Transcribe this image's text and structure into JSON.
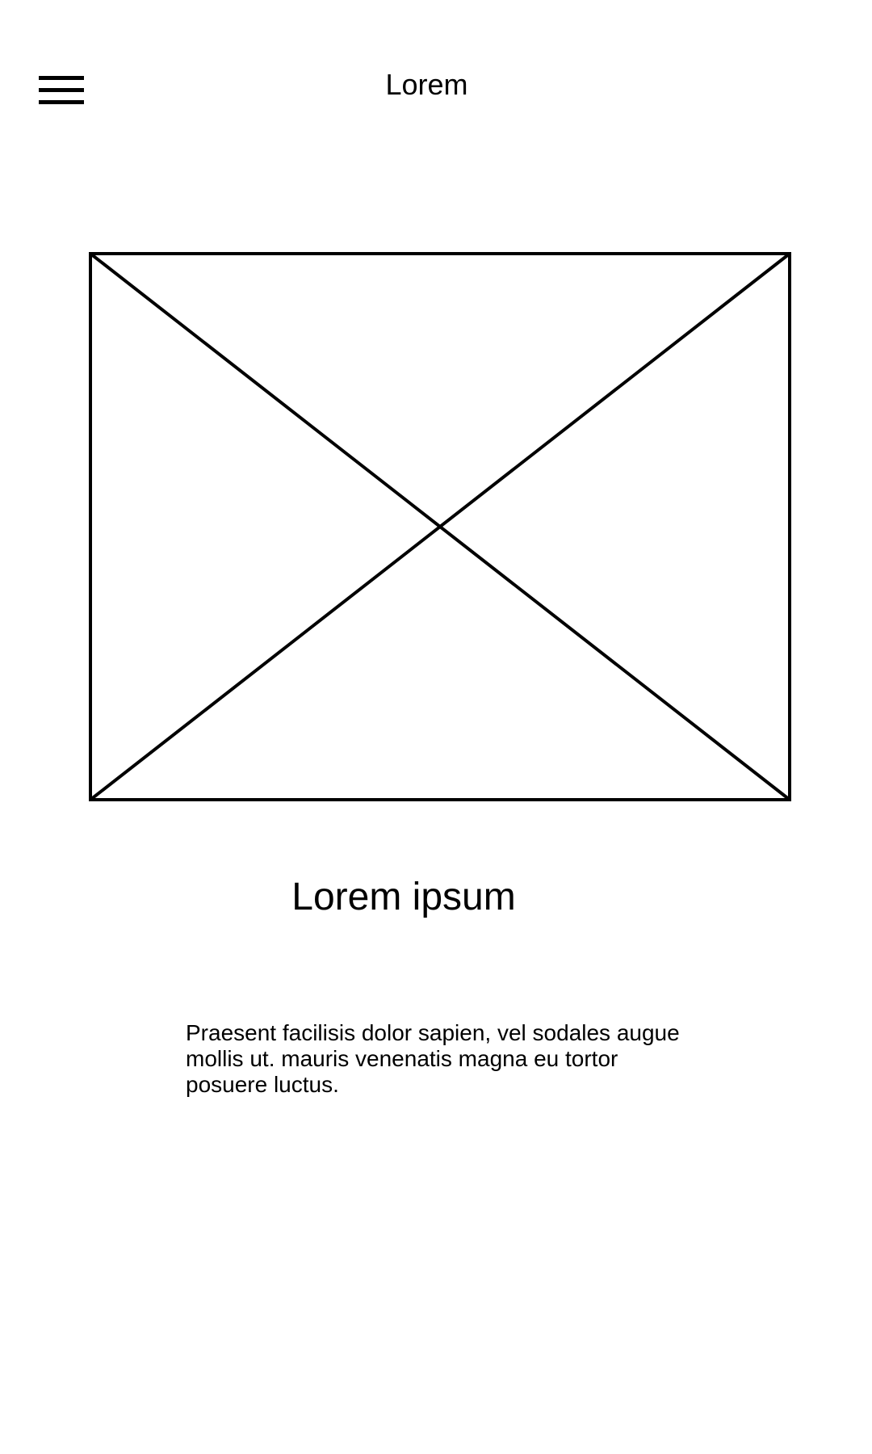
{
  "header": {
    "title": "Lorem",
    "menu_icon": "hamburger-menu-icon"
  },
  "main": {
    "image_placeholder_icon": "image-placeholder-icon",
    "heading": "Lorem ipsum",
    "body": "Praesent facilisis dolor sapien, vel sodales augue mollis ut. mauris venenatis magna eu tortor posuere luctus."
  },
  "colors": {
    "background": "#ffffff",
    "foreground": "#000000"
  }
}
